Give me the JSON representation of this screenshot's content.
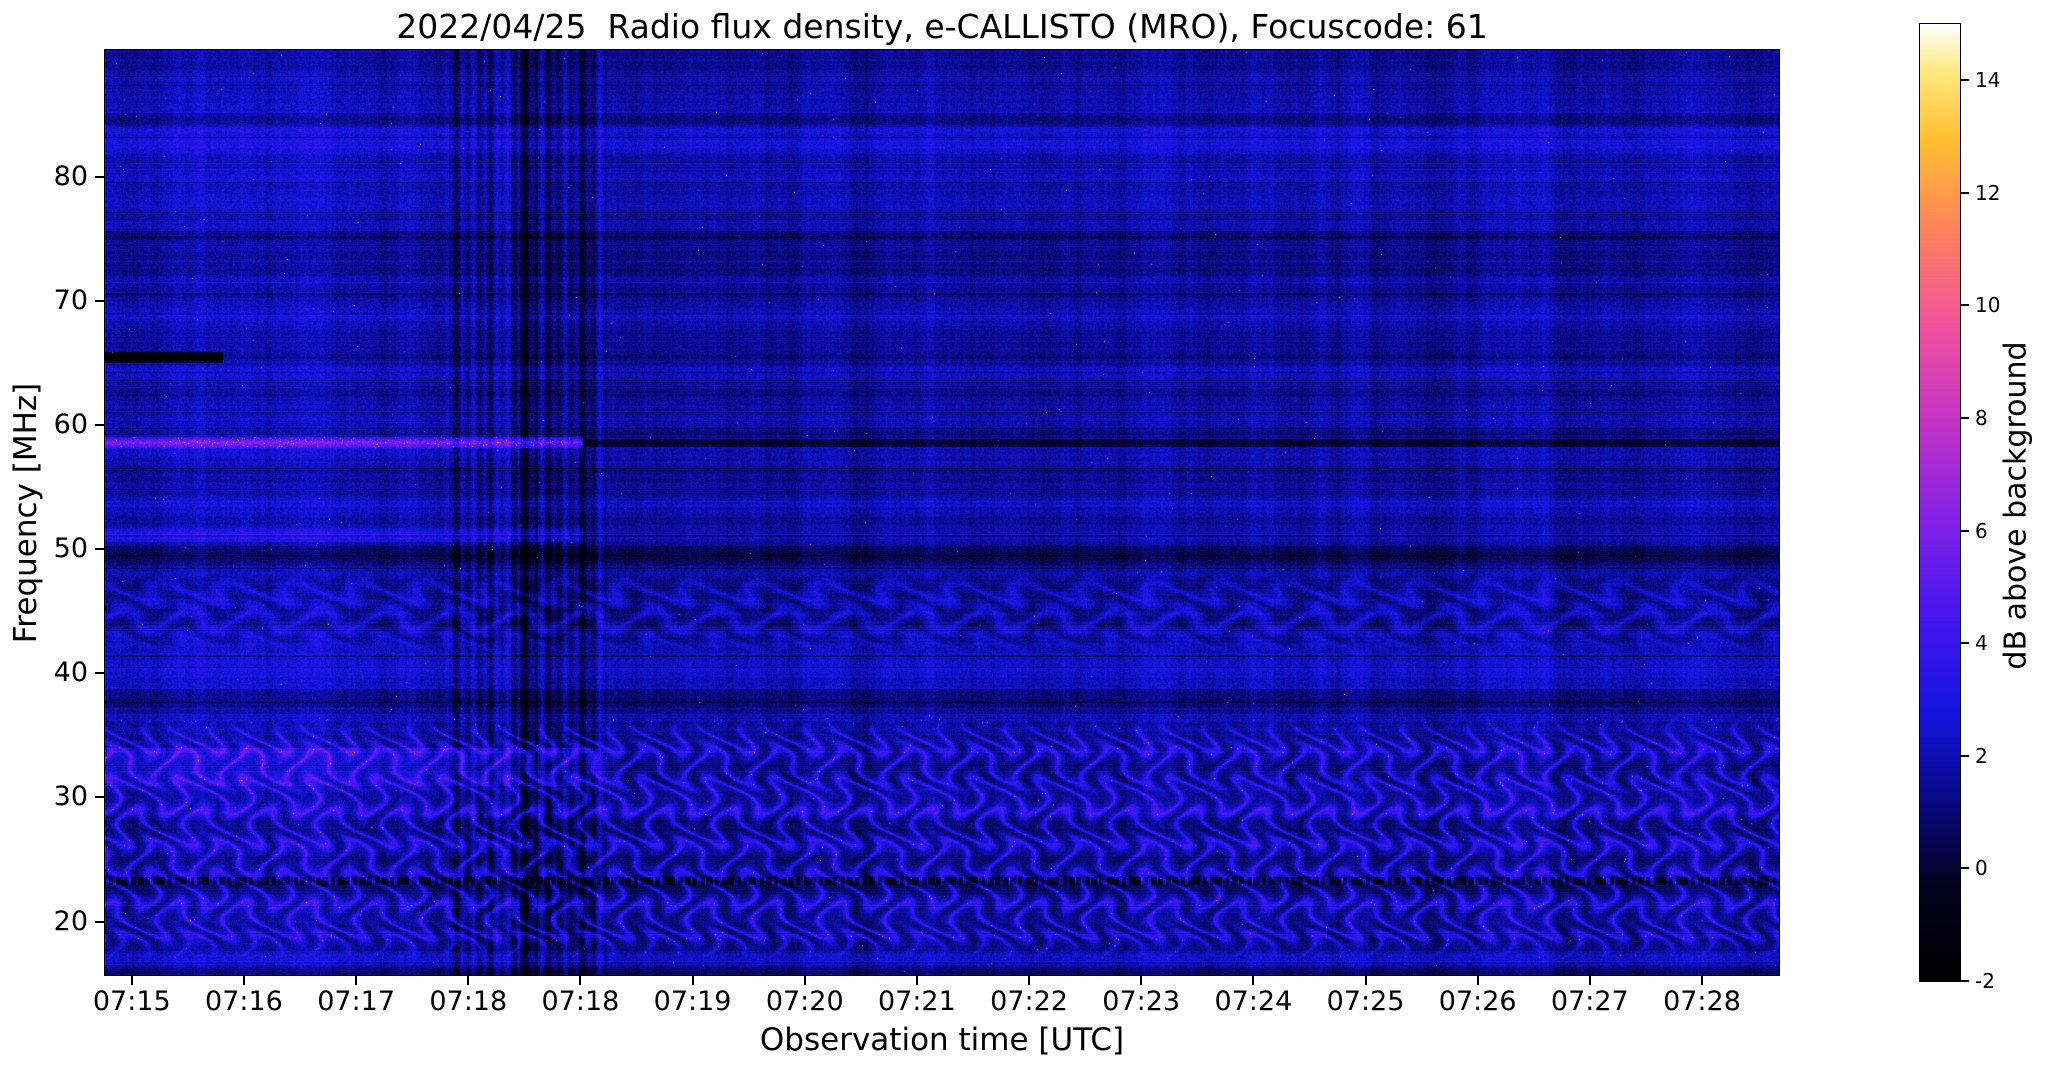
{
  "figure": {
    "background": "#ffffff"
  },
  "chart_data": {
    "type": "heatmap",
    "title": "2022/04/25  Radio flux density, e-CALLISTO (MRO), Focuscode: 61",
    "xlabel": "Observation time [UTC]",
    "ylabel": "Frequency [MHz]",
    "x_tick_labels": [
      "07:15",
      "07:16",
      "07:17",
      "07:18",
      "07:18",
      "07:19",
      "07:20",
      "07:21",
      "07:22",
      "07:23",
      "07:24",
      "07:25",
      "07:26",
      "07:27",
      "07:28"
    ],
    "x_tick_start_frac": 0.016,
    "x_tick_step_frac": 0.067,
    "y_ticks_mhz": [
      20,
      30,
      40,
      50,
      60,
      70,
      80
    ],
    "y_range_mhz": [
      15.7,
      90.2
    ],
    "duration_min": 13.9,
    "grid": false,
    "background_level_db": 1.7,
    "colorbar": {
      "label": "dB above background",
      "ticks": [
        -2,
        0,
        2,
        4,
        6,
        8,
        10,
        12,
        14
      ],
      "vmin": -2,
      "vmax": 15,
      "colormap": "gnuplot2-like",
      "stops": [
        [
          0.0,
          "#000000"
        ],
        [
          0.1,
          "#05021f"
        ],
        [
          0.2,
          "#0b0b8f"
        ],
        [
          0.28,
          "#1515e0"
        ],
        [
          0.38,
          "#4717f0"
        ],
        [
          0.48,
          "#8222e8"
        ],
        [
          0.58,
          "#c233c8"
        ],
        [
          0.68,
          "#f050a0"
        ],
        [
          0.78,
          "#ff8060"
        ],
        [
          0.88,
          "#ffc030"
        ],
        [
          0.95,
          "#ffe980"
        ],
        [
          1.0,
          "#ffffff"
        ]
      ]
    },
    "features": [
      {
        "id": "herringbone-low",
        "kind": "wavy-band",
        "f_min": 17,
        "f_max": 36.5,
        "ridge_spacing_mhz": 2.5,
        "wave_amp_mhz": 1.5,
        "wave_period_min": 0.55,
        "strength_db": 2.1
      },
      {
        "id": "herringbone-mid",
        "kind": "wavy-band",
        "f_min": 41.5,
        "f_max": 48.5,
        "ridge_spacing_mhz": 2.3,
        "wave_amp_mhz": 0.85,
        "wave_period_min": 0.55,
        "strength_db": 0.95
      },
      {
        "id": "carrier-58.6MHz-bright",
        "kind": "h-line",
        "f": 58.6,
        "half_width_mhz": 0.45,
        "t_frac": [
          0,
          0.285
        ],
        "delta_db": 3.8
      },
      {
        "id": "carrier-58.6MHz-dark-after",
        "kind": "h-line",
        "f": 58.6,
        "half_width_mhz": 0.3,
        "t_frac": [
          0.285,
          1
        ],
        "delta_db": -2.6
      },
      {
        "id": "carrier-51.2MHz-left",
        "kind": "h-line",
        "f": 51.2,
        "half_width_mhz": 0.55,
        "t_frac": [
          0,
          0.285
        ],
        "delta_db": 1.3
      },
      {
        "id": "data-gap-65.5MHz",
        "kind": "h-line",
        "f": 65.5,
        "half_width_mhz": 0.45,
        "t_frac": [
          0,
          0.07
        ],
        "delta_db": -4
      },
      {
        "id": "dark-band-84.7MHz",
        "kind": "h-line",
        "f": 84.7,
        "half_width_mhz": 0.5,
        "t_frac": [
          0,
          1
        ],
        "delta_db": -1.1
      },
      {
        "id": "dark-band-75.3MHz",
        "kind": "h-line",
        "f": 75.3,
        "half_width_mhz": 0.4,
        "t_frac": [
          0,
          1
        ],
        "delta_db": -0.9
      },
      {
        "id": "bright-band-53.8MHz",
        "kind": "h-line",
        "f": 53.8,
        "half_width_mhz": 1.2,
        "t_frac": [
          0,
          1
        ],
        "delta_db": 0.6
      },
      {
        "id": "dark-band-49.5MHz",
        "kind": "h-line",
        "f": 49.5,
        "half_width_mhz": 0.8,
        "t_frac": [
          0,
          1
        ],
        "delta_db": -0.8
      },
      {
        "id": "dark-band-37.8MHz",
        "kind": "h-line",
        "f": 37.8,
        "half_width_mhz": 1.0,
        "t_frac": [
          0,
          1
        ],
        "delta_db": -0.9
      },
      {
        "id": "dashed-line-23.3MHz",
        "kind": "dashed-line",
        "f": 23.3,
        "half_width_mhz": 0.3,
        "delta_db": -1.7
      },
      {
        "id": "instrument-switch-0718",
        "kind": "v-disturbance",
        "t_frac": [
          0.205,
          0.3
        ],
        "stripe_db": 1.1,
        "dark_db": -1.2
      },
      {
        "id": "left-segment-brighter",
        "kind": "region",
        "t_frac": [
          0,
          0.3
        ],
        "delta_db": 0.35
      },
      {
        "id": "left-33MHz-enhancement",
        "kind": "band-boost",
        "f_min": 31,
        "f_max": 34,
        "t_frac": [
          0,
          0.3
        ],
        "delta_db": 0.9
      }
    ]
  }
}
